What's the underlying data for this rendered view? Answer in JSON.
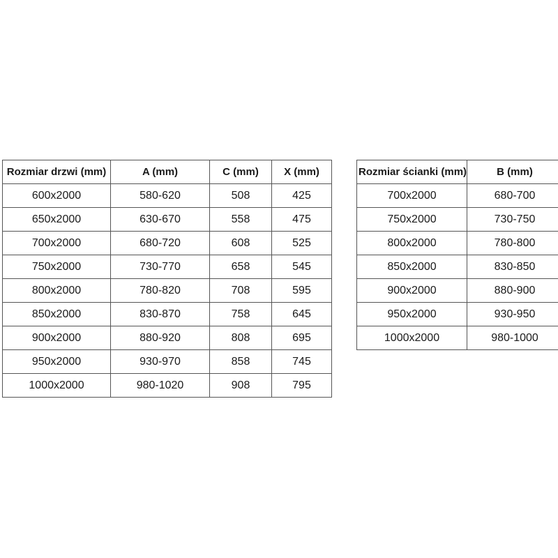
{
  "colors": {
    "background": "#ffffff",
    "border": "#555555",
    "text": "#1a1a1a"
  },
  "tables": {
    "doors": {
      "headers": [
        "Rozmiar drzwi (mm)",
        "A (mm)",
        "C (mm)",
        "X (mm)"
      ],
      "rows": [
        [
          "600x2000",
          "580-620",
          "508",
          "425"
        ],
        [
          "650x2000",
          "630-670",
          "558",
          "475"
        ],
        [
          "700x2000",
          "680-720",
          "608",
          "525"
        ],
        [
          "750x2000",
          "730-770",
          "658",
          "545"
        ],
        [
          "800x2000",
          "780-820",
          "708",
          "595"
        ],
        [
          "850x2000",
          "830-870",
          "758",
          "645"
        ],
        [
          "900x2000",
          "880-920",
          "808",
          "695"
        ],
        [
          "950x2000",
          "930-970",
          "858",
          "745"
        ],
        [
          "1000x2000",
          "980-1020",
          "908",
          "795"
        ]
      ]
    },
    "walls": {
      "headers": [
        "Rozmiar ścianki (mm)",
        "B (mm)"
      ],
      "rows": [
        [
          "700x2000",
          "680-700"
        ],
        [
          "750x2000",
          "730-750"
        ],
        [
          "800x2000",
          "780-800"
        ],
        [
          "850x2000",
          "830-850"
        ],
        [
          "900x2000",
          "880-900"
        ],
        [
          "950x2000",
          "930-950"
        ],
        [
          "1000x2000",
          "980-1000"
        ]
      ]
    }
  }
}
